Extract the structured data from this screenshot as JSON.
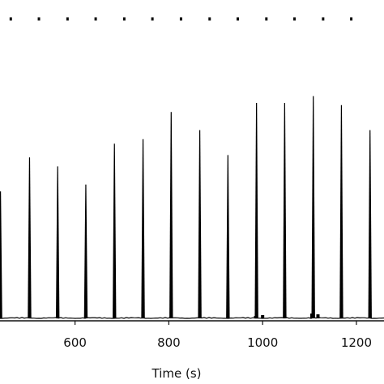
{
  "chart_data": {
    "type": "line",
    "title": "",
    "xlabel": "Time (s)",
    "ylabel": "",
    "xlim": [
      440,
      1245
    ],
    "ylim": [
      0,
      1
    ],
    "x_ticks": [
      600,
      800,
      1000,
      1200
    ],
    "x_tick_labels": [
      "600",
      "800",
      "1000",
      "1200"
    ],
    "grid": false,
    "legend": "none",
    "peak_color": "#000000",
    "series": [
      {
        "peaks": [
          {
            "x": 441,
            "y": 0.56
          },
          {
            "x": 503,
            "y": 0.71
          },
          {
            "x": 563,
            "y": 0.67
          },
          {
            "x": 623,
            "y": 0.59
          },
          {
            "x": 684,
            "y": 0.77
          },
          {
            "x": 745,
            "y": 0.79
          },
          {
            "x": 805,
            "y": 0.91
          },
          {
            "x": 866,
            "y": 0.83
          },
          {
            "x": 926,
            "y": 0.72
          },
          {
            "x": 987,
            "y": 0.95
          },
          {
            "x": 1047,
            "y": 0.95
          },
          {
            "x": 1108,
            "y": 0.98
          },
          {
            "x": 1168,
            "y": 0.94
          },
          {
            "x": 1229,
            "y": 0.83
          }
        ]
      }
    ],
    "markers": {
      "y": 1.32,
      "x": [
        463,
        523,
        584,
        644,
        705,
        765,
        826,
        887,
        947,
        1008,
        1068,
        1129,
        1189
      ]
    }
  }
}
